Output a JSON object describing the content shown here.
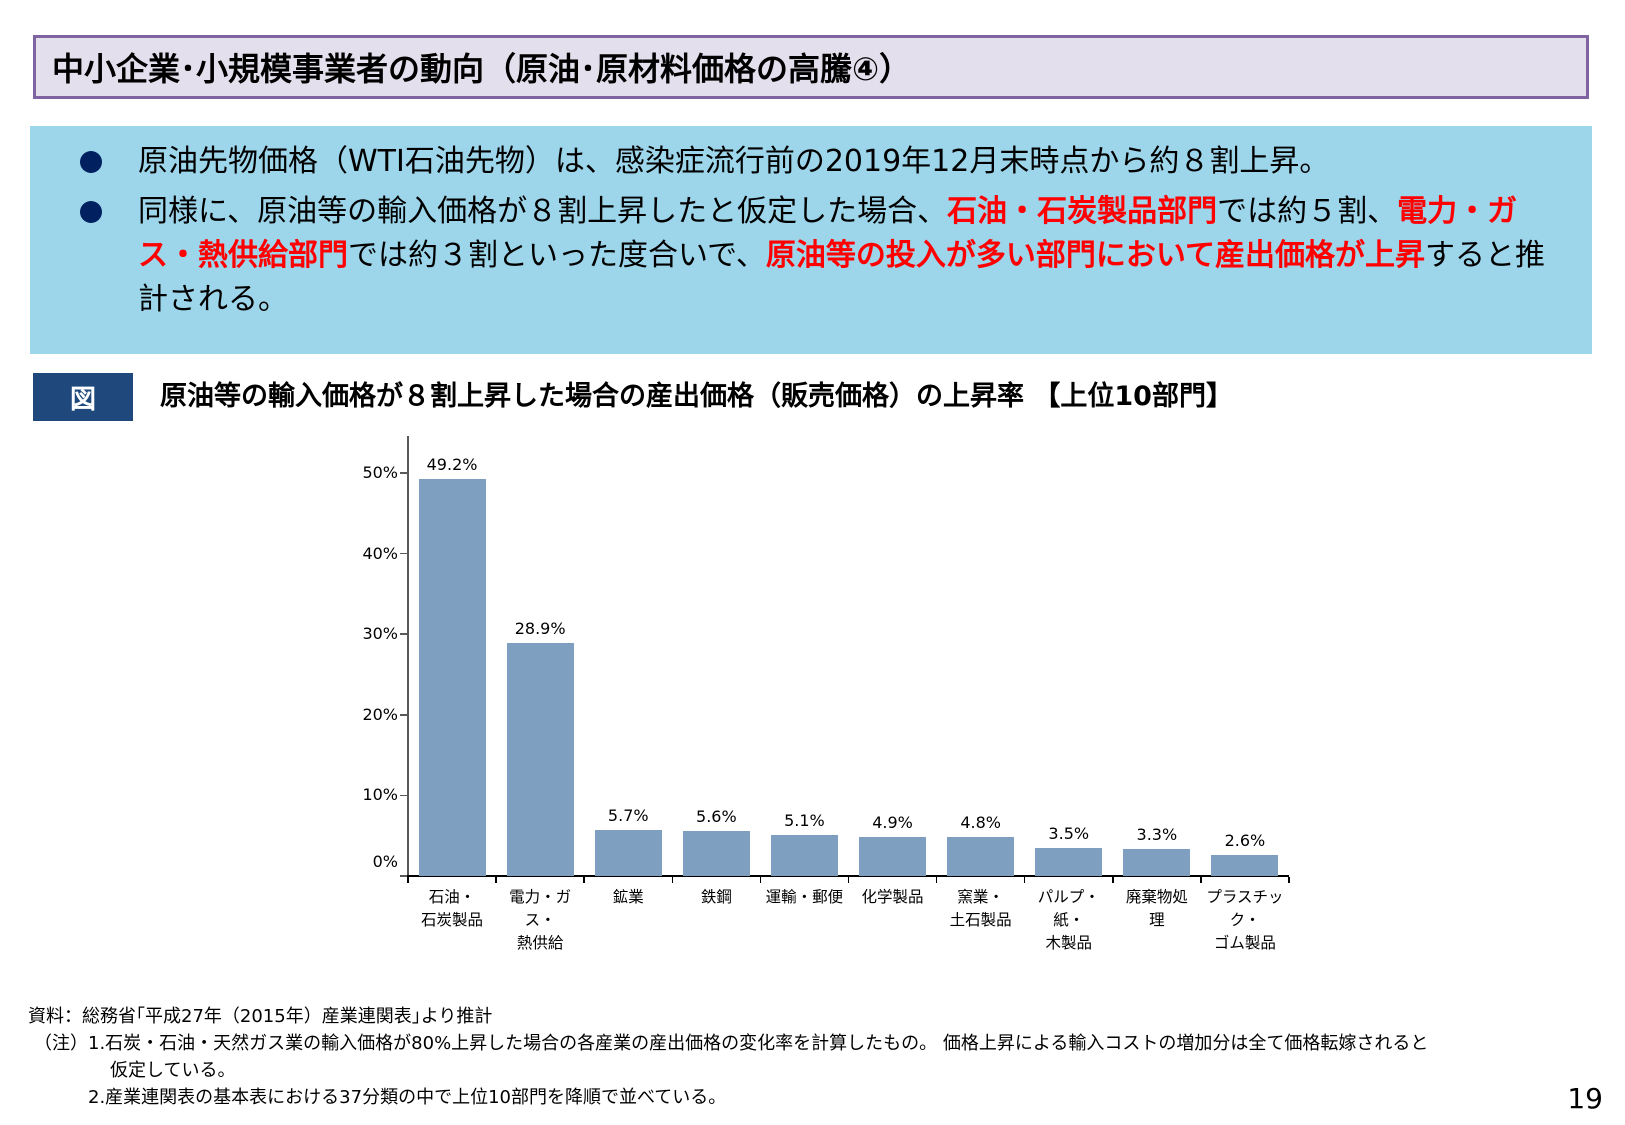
{
  "slide": {
    "title": "中小企業･小規模事業者の動向（原油･原材料価格の高騰④）",
    "page_number": "19"
  },
  "summary": {
    "bullets": [
      {
        "segments": [
          {
            "text": "原油先物価格（WTI石油先物）は、感染症流行前の2019年12月末時点から約８割上昇。",
            "highlight": false
          }
        ]
      },
      {
        "segments": [
          {
            "text": "同様に、原油等の輸入価格が８割上昇したと仮定した場合、",
            "highlight": false
          },
          {
            "text": "石油・石炭製品部門",
            "highlight": true
          },
          {
            "text": "では約５割、",
            "highlight": false
          },
          {
            "text": "電力・ガス・熱供給部門",
            "highlight": true
          },
          {
            "text": "では約３割といった度合いで、",
            "highlight": false
          },
          {
            "text": "原油等の投入が多い部門において産出価格が上昇",
            "highlight": true
          },
          {
            "text": "すると推計される。",
            "highlight": false
          }
        ]
      }
    ],
    "colors": {
      "highlight": "#ff0000",
      "background": "#9dd6eb",
      "bullet": "#002060"
    }
  },
  "figure": {
    "badge": "図",
    "title": "原油等の輸入価格が８割上昇した場合の産出価格（販売価格）の上昇率 【上位10部門】"
  },
  "chart_data": {
    "type": "bar",
    "title": "原油等の輸入価格が８割上昇した場合の産出価格（販売価格）の上昇率 【上位10部門】",
    "xlabel": "",
    "ylabel": "",
    "categories": [
      "石油・石炭製品",
      "電力・ガス・熱供給",
      "鉱業",
      "鉄鋼",
      "運輸・郵便",
      "化学製品",
      "窯業・土石製品",
      "パルプ・紙・木製品",
      "廃棄物処理",
      "プラスチック・ゴム製品"
    ],
    "category_labels_wrapped": [
      "石油・\n石炭製品",
      "電力・ガス・\n熱供給",
      "鉱業",
      "鉄鋼",
      "運輸・郵便",
      "化学製品",
      "窯業・\n土石製品",
      "パルプ・紙・\n木製品",
      "廃棄物処\n理",
      "プラスチック・\nゴム製品"
    ],
    "values": [
      49.2,
      28.9,
      5.7,
      5.6,
      5.1,
      4.9,
      4.8,
      3.5,
      3.3,
      2.6
    ],
    "value_labels": [
      "49.2%",
      "28.9%",
      "5.7%",
      "5.6%",
      "5.1%",
      "4.9%",
      "4.8%",
      "3.5%",
      "3.3%",
      "2.6%"
    ],
    "yticks": [
      "0%",
      "10%",
      "20%",
      "30%",
      "40%",
      "50%"
    ],
    "ytick_values": [
      0,
      10,
      20,
      30,
      40,
      50
    ],
    "ylim": [
      0,
      54
    ],
    "grid": false,
    "legend": null,
    "bar_color": "#7f9fc0"
  },
  "notes": {
    "source": "資料：総務省｢平成27年（2015年）産業連関表｣より推計",
    "note1_prefix": "（注）",
    "note1": "1.石炭・石油・天然ガス業の輸入価格が80%上昇した場合の各産業の産出価格の変化率を計算したもの。 価格上昇による輸入コストの増加分は全て価格転嫁されると",
    "note1_cont": "仮定している。",
    "note2": "2.産業連関表の基本表における37分類の中で上位10部門を降順で並べている。"
  }
}
